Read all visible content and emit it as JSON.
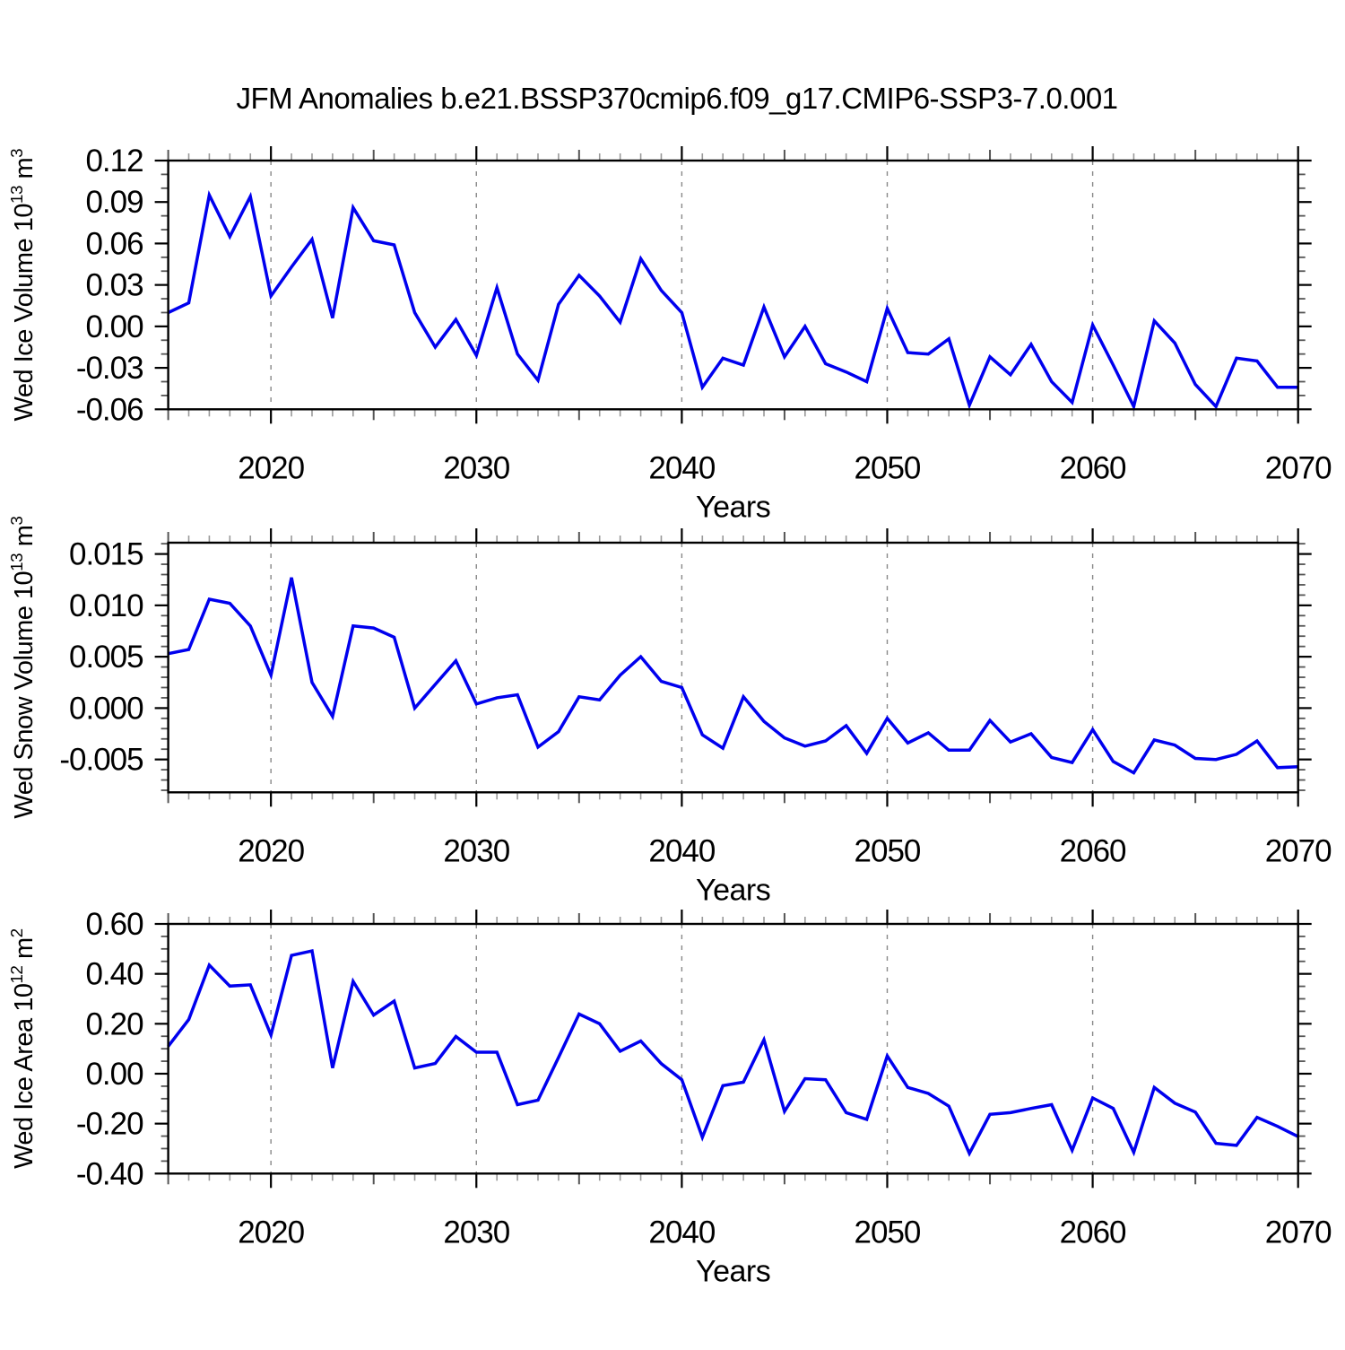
{
  "title": "JFM Anomalies b.e21.BSSP370cmip6.f09_g17.CMIP6-SSP3-7.0.001",
  "line_color": "#0000EE",
  "grid_color": "#888888",
  "frame_color": "#000000",
  "chart_data": [
    {
      "type": "line",
      "name": "wed-ice-volume",
      "ylabel": "Wed Ice Volume 10^13 m^3",
      "ylabel_segments": [
        {
          "text": "Wed Ice Volume 10"
        },
        {
          "sup": "13"
        },
        {
          "text": " m"
        },
        {
          "sup": "3"
        }
      ],
      "xlabel": "Years",
      "ylim": [
        -0.06,
        0.12
      ],
      "ytick_values": [
        -0.06,
        -0.03,
        0.0,
        0.03,
        0.06,
        0.09,
        0.12
      ],
      "ytick_labels": [
        "-0.06",
        "-0.03",
        "0.00",
        "0.03",
        "0.06",
        "0.09",
        "0.12"
      ],
      "y_minor_step": 0.01,
      "xlim": [
        2015,
        2070
      ],
      "x_start": 2015,
      "x_step": 1,
      "xtick_major": [
        2020,
        2030,
        2040,
        2050,
        2060,
        2070
      ],
      "xtick_labels": [
        "2020",
        "2030",
        "2040",
        "2050",
        "2060",
        "2070"
      ],
      "grid_years": [
        2020,
        2030,
        2040,
        2050,
        2060
      ],
      "values": [
        0.01,
        0.017,
        0.095,
        0.065,
        0.094,
        0.022,
        0.043,
        0.063,
        0.006,
        0.086,
        0.062,
        0.059,
        0.01,
        -0.015,
        0.005,
        -0.021,
        0.028,
        -0.02,
        -0.039,
        0.016,
        0.037,
        0.022,
        0.003,
        0.049,
        0.026,
        0.01,
        -0.044,
        -0.023,
        -0.028,
        0.014,
        -0.022,
        0.0,
        -0.027,
        -0.033,
        -0.04,
        0.013,
        -0.019,
        -0.02,
        -0.009,
        -0.057,
        -0.022,
        -0.035,
        -0.013,
        -0.04,
        -0.055,
        0.001,
        -0.028,
        -0.058,
        0.004,
        -0.012,
        -0.042,
        -0.058,
        -0.023,
        -0.025,
        -0.044,
        -0.044
      ]
    },
    {
      "type": "line",
      "name": "wed-snow-volume",
      "ylabel": "Wed Snow Volume 10^13 m^3",
      "ylabel_segments": [
        {
          "text": "Wed Snow Volume 10"
        },
        {
          "sup": "13"
        },
        {
          "text": " m"
        },
        {
          "sup": "3"
        }
      ],
      "xlabel": "Years",
      "ylim": [
        -0.0082,
        0.0161
      ],
      "ytick_values": [
        -0.005,
        0.0,
        0.005,
        0.01,
        0.015
      ],
      "ytick_labels": [
        "-0.005",
        "0.000",
        "0.005",
        "0.010",
        "0.015"
      ],
      "y_minor_step": 0.001,
      "xlim": [
        2015,
        2070
      ],
      "x_start": 2015,
      "x_step": 1,
      "xtick_major": [
        2020,
        2030,
        2040,
        2050,
        2060,
        2070
      ],
      "xtick_labels": [
        "2020",
        "2030",
        "2040",
        "2050",
        "2060",
        "2070"
      ],
      "grid_years": [
        2020,
        2030,
        2040,
        2050,
        2060
      ],
      "values": [
        0.0053,
        0.0057,
        0.0106,
        0.0102,
        0.008,
        0.0032,
        0.0127,
        0.0025,
        -0.0008,
        0.008,
        0.0078,
        0.0069,
        0.0,
        0.0023,
        0.0046,
        0.0004,
        0.001,
        0.0013,
        -0.0038,
        -0.0023,
        0.0011,
        0.0008,
        0.0032,
        0.005,
        0.0026,
        0.002,
        -0.0026,
        -0.0039,
        0.0011,
        -0.0013,
        -0.0029,
        -0.0037,
        -0.0032,
        -0.0017,
        -0.0044,
        -0.001,
        -0.0034,
        -0.0024,
        -0.0041,
        -0.0041,
        -0.0012,
        -0.0033,
        -0.0025,
        -0.0048,
        -0.0053,
        -0.0021,
        -0.0052,
        -0.0063,
        -0.0031,
        -0.0036,
        -0.0049,
        -0.005,
        -0.0045,
        -0.0032,
        -0.0058,
        -0.0057
      ]
    },
    {
      "type": "line",
      "name": "wed-ice-area",
      "ylabel": "Wed Ice Area 10^12 m^2",
      "ylabel_segments": [
        {
          "text": "Wed Ice Area 10"
        },
        {
          "sup": "12"
        },
        {
          "text": " m"
        },
        {
          "sup": "2"
        }
      ],
      "xlabel": "Years",
      "ylim": [
        -0.4,
        0.6
      ],
      "ytick_values": [
        -0.4,
        -0.2,
        0.0,
        0.2,
        0.4,
        0.6
      ],
      "ytick_labels": [
        "-0.40",
        "-0.20",
        "0.00",
        "0.20",
        "0.40",
        "0.60"
      ],
      "y_minor_step": 0.05,
      "xlim": [
        2015,
        2070
      ],
      "x_start": 2015,
      "x_step": 1,
      "xtick_major": [
        2020,
        2030,
        2040,
        2050,
        2060,
        2070
      ],
      "xtick_labels": [
        "2020",
        "2030",
        "2040",
        "2050",
        "2060",
        "2070"
      ],
      "grid_years": [
        2020,
        2030,
        2040,
        2050,
        2060
      ],
      "values": [
        0.11,
        0.217,
        0.435,
        0.351,
        0.356,
        0.155,
        0.474,
        0.492,
        0.023,
        0.37,
        0.235,
        0.291,
        0.023,
        0.041,
        0.149,
        0.086,
        0.086,
        -0.124,
        -0.106,
        0.065,
        0.239,
        0.2,
        0.09,
        0.131,
        0.04,
        -0.024,
        -0.255,
        -0.048,
        -0.034,
        0.136,
        -0.151,
        -0.02,
        -0.024,
        -0.156,
        -0.183,
        0.071,
        -0.055,
        -0.079,
        -0.13,
        -0.319,
        -0.163,
        -0.156,
        -0.139,
        -0.124,
        -0.307,
        -0.097,
        -0.139,
        -0.315,
        -0.055,
        -0.118,
        -0.154,
        -0.279,
        -0.287,
        -0.175,
        -0.211,
        -0.252
      ]
    }
  ]
}
